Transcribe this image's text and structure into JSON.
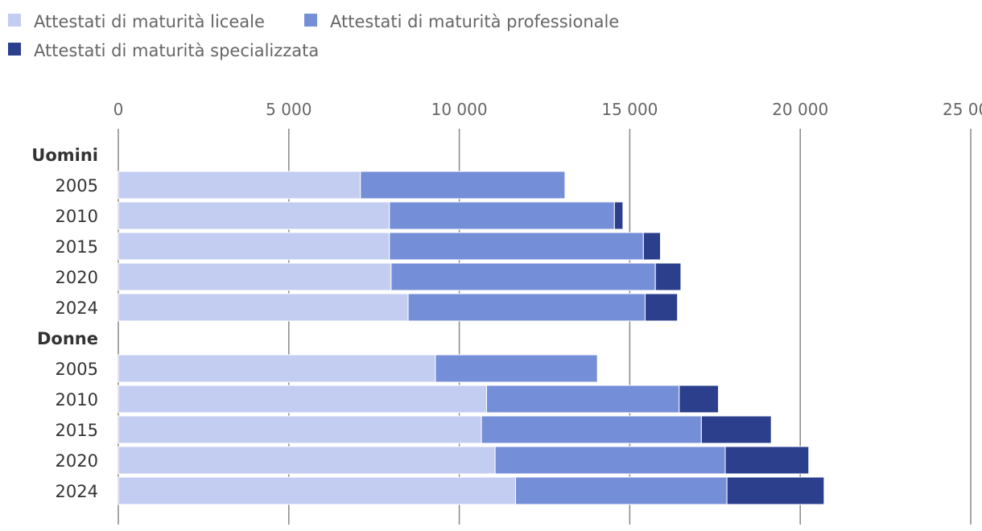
{
  "chart_data": {
    "type": "bar",
    "orientation": "horizontal",
    "stacked": true,
    "title": "",
    "xlabel": "",
    "ylabel": "",
    "xlim": [
      0,
      25000
    ],
    "ticks": [
      0,
      5000,
      10000,
      15000,
      20000,
      25000
    ],
    "tick_labels": [
      "0",
      "5 000",
      "10 000",
      "15 000",
      "20 000",
      "25 000"
    ],
    "grid": true,
    "legend_position": "top-left",
    "groups": [
      {
        "label": "Uomini",
        "categories": [
          "2005",
          "2010",
          "2015",
          "2020",
          "2024"
        ],
        "rows": [
          [
            7100,
            6000,
            0
          ],
          [
            7950,
            6600,
            250
          ],
          [
            7950,
            7450,
            500
          ],
          [
            8000,
            7750,
            750
          ],
          [
            8500,
            6950,
            950
          ]
        ]
      },
      {
        "label": "Donne",
        "categories": [
          "2005",
          "2010",
          "2015",
          "2020",
          "2024"
        ],
        "rows": [
          [
            9300,
            4750,
            0
          ],
          [
            10800,
            5650,
            1150
          ],
          [
            10650,
            6450,
            2050
          ],
          [
            11050,
            6750,
            2450
          ],
          [
            11650,
            6200,
            2850
          ]
        ]
      }
    ],
    "series": [
      {
        "name": "Attestati di maturità liceale",
        "color": "#c3cdf1"
      },
      {
        "name": "Attestati di maturità professionale",
        "color": "#758ed8"
      },
      {
        "name": "Attestati di maturità specializzata",
        "color": "#2b3f8c"
      }
    ]
  }
}
